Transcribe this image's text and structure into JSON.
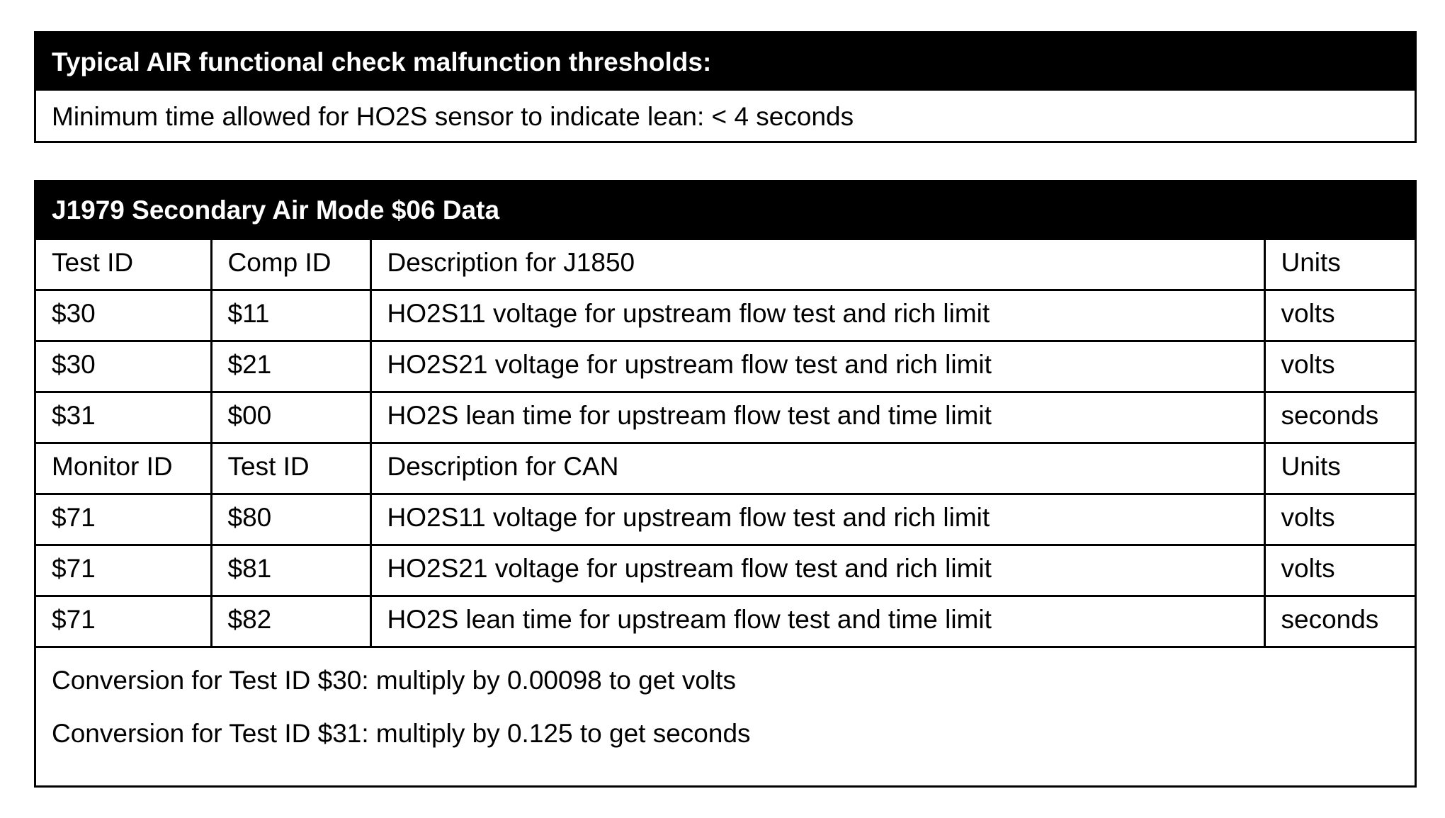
{
  "thresholds": {
    "title": "Typical AIR functional check malfunction thresholds:",
    "text": "Minimum time allowed for HO2S sensor to indicate lean: < 4 seconds"
  },
  "mode06": {
    "title": "J1979 Secondary Air Mode $06 Data",
    "rows": [
      [
        "Test ID",
        "Comp ID",
        "Description for J1850",
        "Units"
      ],
      [
        "$30",
        "$11",
        "HO2S11 voltage for upstream flow test and rich limit",
        "volts"
      ],
      [
        "$30",
        "$21",
        "HO2S21 voltage for upstream flow test and rich limit",
        "volts"
      ],
      [
        "$31",
        "$00",
        "HO2S lean time for upstream flow test and time limit",
        "seconds"
      ],
      [
        "Monitor ID",
        "Test ID",
        "Description for CAN",
        "Units"
      ],
      [
        "$71",
        "$80",
        "HO2S11 voltage for upstream flow test and rich limit",
        "volts"
      ],
      [
        "$71",
        "$81",
        "HO2S21 voltage for upstream flow test and rich limit",
        "volts"
      ],
      [
        "$71",
        "$82",
        "HO2S lean time for upstream flow test and time limit",
        "seconds"
      ]
    ],
    "notes": [
      "Conversion for Test ID $30: multiply by 0.00098 to get volts",
      "Conversion for Test ID $31: multiply by 0.125 to get seconds"
    ]
  }
}
